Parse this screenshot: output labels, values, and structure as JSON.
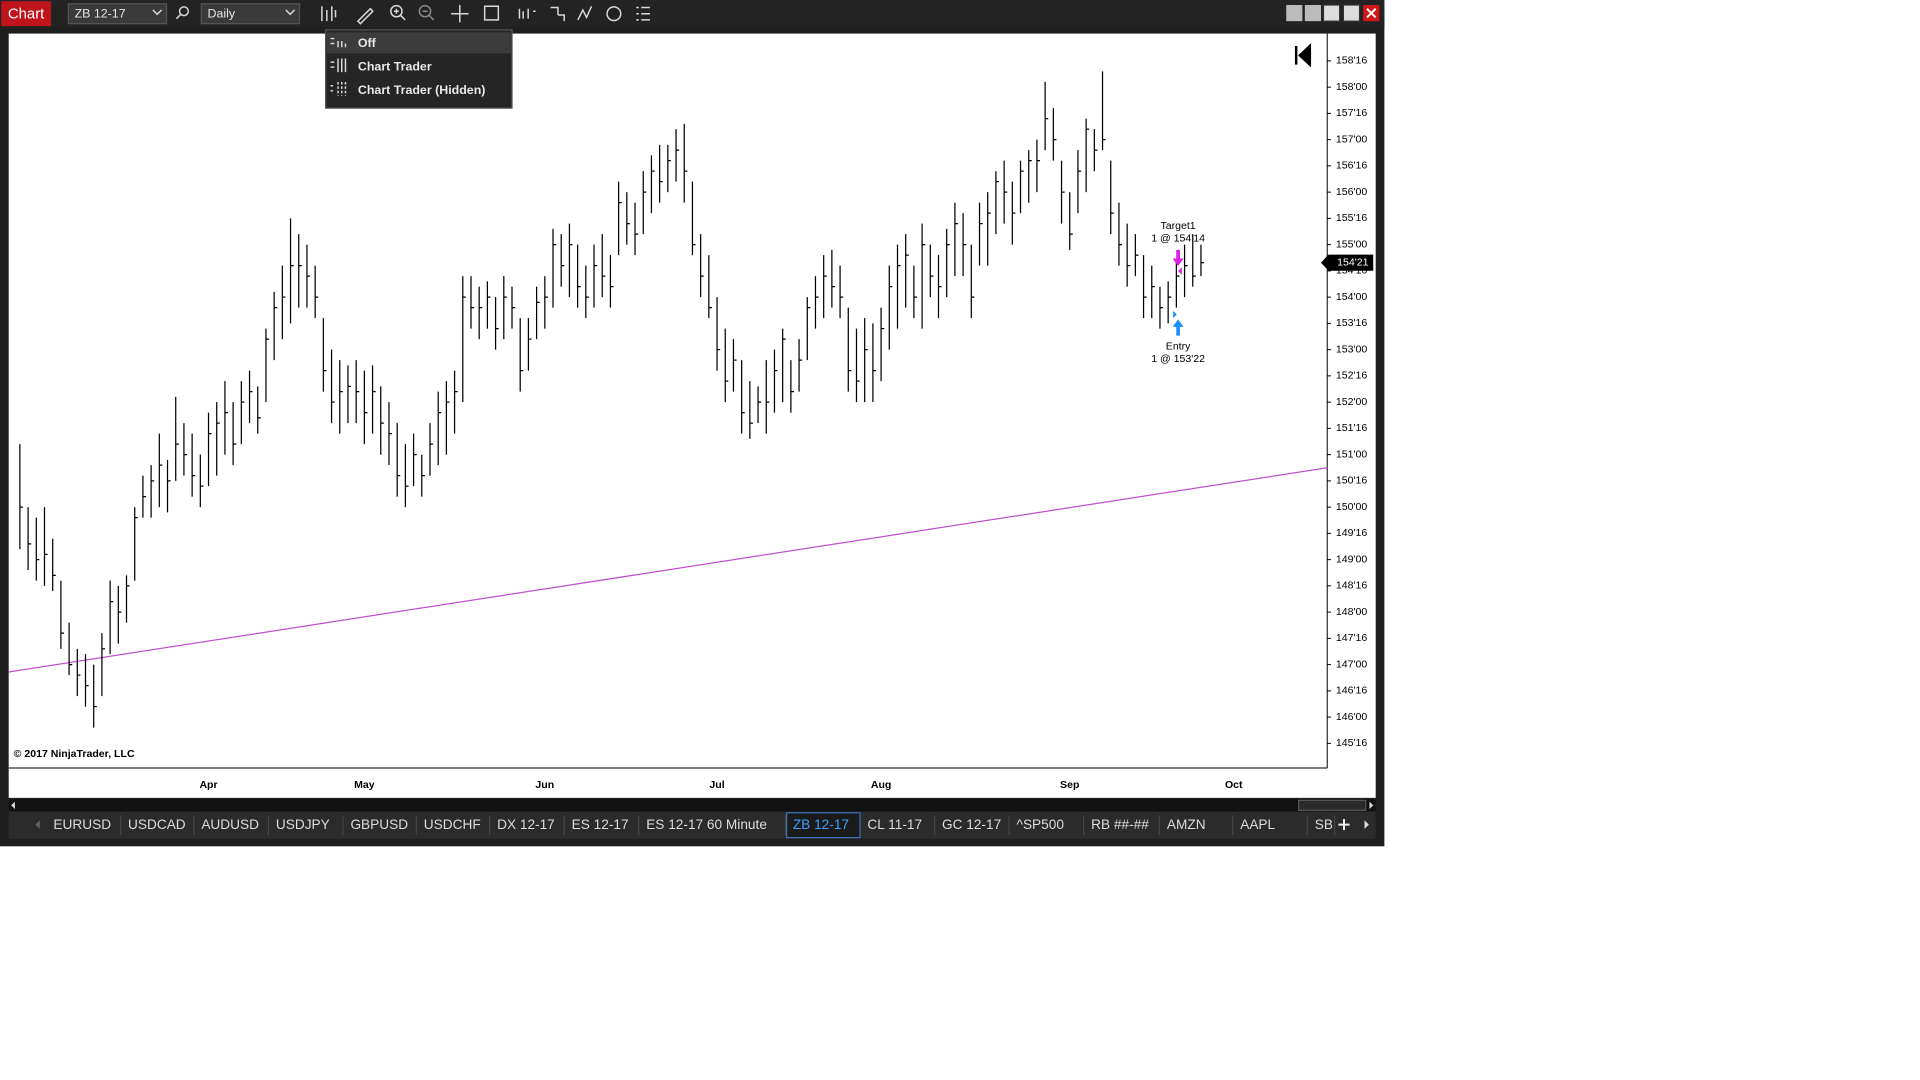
{
  "window": {
    "title": "Chart",
    "instrument": "ZB 12-17",
    "interval": "Daily"
  },
  "menu": {
    "items": [
      "Off",
      "Chart Trader",
      "Chart Trader (Hidden)"
    ]
  },
  "tabs": {
    "items": [
      "EURUSD",
      "USDCAD",
      "AUDUSD",
      "USDJPY",
      "GBPUSD",
      "USDCHF",
      "DX 12-17",
      "ES 12-17",
      "ES 12-17 60 Minute",
      "ZB 12-17",
      "CL 11-17",
      "GC 12-17",
      "^SP500",
      "RB ##-##",
      "AMZN",
      "AAPL",
      "SB"
    ],
    "active": 9
  },
  "chart_data": {
    "type": "ohlc",
    "color": "#000000",
    "categories": [
      null,
      null,
      null,
      null,
      null,
      null,
      null,
      null,
      null,
      null,
      null,
      null,
      null,
      null,
      null,
      null,
      null,
      null,
      null,
      null,
      null,
      null,
      null,
      "Apr",
      null,
      null,
      null,
      null,
      null,
      null,
      null,
      null,
      null,
      null,
      null,
      null,
      null,
      null,
      null,
      null,
      null,
      null,
      "May",
      null,
      null,
      null,
      null,
      null,
      null,
      null,
      null,
      null,
      null,
      null,
      null,
      null,
      null,
      null,
      null,
      null,
      null,
      null,
      null,
      null,
      "Jun",
      null,
      null,
      null,
      null,
      null,
      null,
      null,
      null,
      null,
      null,
      null,
      null,
      null,
      null,
      null,
      null,
      null,
      null,
      null,
      null,
      "Jul",
      null,
      null,
      null,
      null,
      null,
      null,
      null,
      null,
      null,
      null,
      null,
      null,
      null,
      null,
      null,
      null,
      null,
      null,
      null,
      "Aug",
      null,
      null,
      null,
      null,
      null,
      null,
      null,
      null,
      null,
      null,
      null,
      null,
      null,
      null,
      null,
      null,
      null,
      null,
      null,
      null,
      null,
      null,
      "Sep",
      null,
      null,
      null,
      null,
      null,
      null,
      null,
      null,
      null,
      null,
      null,
      null,
      null,
      null,
      null,
      null,
      null,
      null,
      null,
      "Oct"
    ],
    "high": [
      151.2,
      150.0,
      149.8,
      150.0,
      149.4,
      148.6,
      147.8,
      147.3,
      147.2,
      147.0,
      147.6,
      148.6,
      148.5,
      148.7,
      150.0,
      150.6,
      150.8,
      151.4,
      150.9,
      152.1,
      151.6,
      151.4,
      151.0,
      151.8,
      152.0,
      152.4,
      152.0,
      152.4,
      152.6,
      152.3,
      153.4,
      154.1,
      154.6,
      155.5,
      155.2,
      155.0,
      154.6,
      153.6,
      153.0,
      152.8,
      152.7,
      152.8,
      152.6,
      152.7,
      152.3,
      152.0,
      151.6,
      151.2,
      151.4,
      151.0,
      151.6,
      152.2,
      152.4,
      152.6,
      154.4,
      154.4,
      154.2,
      154.3,
      154.0,
      154.4,
      154.2,
      153.6,
      153.6,
      154.2,
      154.4,
      155.3,
      155.2,
      155.4,
      155.0,
      154.6,
      155.0,
      155.2,
      154.8,
      156.2,
      156.0,
      155.8,
      156.4,
      156.7,
      156.9,
      156.9,
      157.2,
      157.3,
      156.2,
      155.2,
      154.8,
      154.0,
      153.4,
      153.2,
      152.8,
      152.4,
      152.3,
      152.8,
      153.0,
      153.4,
      152.8,
      153.2,
      154.0,
      154.4,
      154.8,
      154.9,
      154.6,
      153.8,
      153.4,
      153.6,
      153.5,
      153.8,
      154.6,
      155.0,
      155.2,
      154.6,
      155.4,
      155.0,
      154.8,
      155.3,
      155.8,
      155.6,
      155.0,
      155.8,
      156.0,
      156.4,
      156.6,
      156.2,
      156.6,
      156.8,
      157.0,
      158.1,
      157.6,
      156.6,
      156.0,
      156.8,
      157.4,
      157.2,
      158.3,
      156.6,
      155.8,
      155.4,
      155.2,
      154.8,
      154.6,
      154.2,
      154.3,
      154.7,
      155.0,
      155.2,
      155.0,
      null,
      null,
      null,
      null
    ],
    "low": [
      149.2,
      148.8,
      148.6,
      148.5,
      148.4,
      147.3,
      146.8,
      146.4,
      146.2,
      145.8,
      146.4,
      147.2,
      147.4,
      147.8,
      148.6,
      149.8,
      149.8,
      150.0,
      149.9,
      150.5,
      150.6,
      150.2,
      150.0,
      150.4,
      150.6,
      151.0,
      150.8,
      151.2,
      151.6,
      151.4,
      152.0,
      152.8,
      153.2,
      153.5,
      153.8,
      153.8,
      153.6,
      152.2,
      151.6,
      151.4,
      151.6,
      151.6,
      151.2,
      151.4,
      151.0,
      150.8,
      150.2,
      150.0,
      150.4,
      150.2,
      150.6,
      150.8,
      151.0,
      151.4,
      152.0,
      153.4,
      153.2,
      153.4,
      153.0,
      153.2,
      153.4,
      152.2,
      152.6,
      153.2,
      153.4,
      153.8,
      154.2,
      154.0,
      153.8,
      153.6,
      153.8,
      154.0,
      153.8,
      154.8,
      155.0,
      154.8,
      155.2,
      155.6,
      155.8,
      156.0,
      156.2,
      155.8,
      154.8,
      154.0,
      153.6,
      152.6,
      152.0,
      152.2,
      151.4,
      151.3,
      151.6,
      151.4,
      151.8,
      152.0,
      151.8,
      152.2,
      152.8,
      153.4,
      153.6,
      153.8,
      153.6,
      152.2,
      152.0,
      152.0,
      152.0,
      152.4,
      153.0,
      153.4,
      153.8,
      153.6,
      153.4,
      154.0,
      153.6,
      154.0,
      154.4,
      154.4,
      153.6,
      154.6,
      154.6,
      155.2,
      155.4,
      155.0,
      155.6,
      155.8,
      156.0,
      156.8,
      156.6,
      155.4,
      154.9,
      155.6,
      156.0,
      156.4,
      156.8,
      155.2,
      154.6,
      154.2,
      154.4,
      153.6,
      153.6,
      153.4,
      153.5,
      153.8,
      154.0,
      154.2,
      154.4,
      null,
      null,
      null,
      null
    ],
    "close": [
      150.0,
      149.3,
      149.0,
      149.1,
      148.7,
      147.6,
      147.0,
      146.8,
      146.6,
      146.2,
      147.3,
      148.2,
      148.0,
      148.5,
      149.8,
      150.2,
      150.5,
      150.8,
      150.5,
      151.2,
      151.0,
      150.6,
      150.4,
      151.4,
      151.6,
      151.8,
      151.2,
      152.0,
      152.2,
      151.7,
      153.2,
      153.8,
      154.0,
      154.6,
      154.6,
      154.4,
      154.0,
      152.6,
      152.0,
      152.2,
      152.3,
      152.2,
      151.8,
      152.2,
      151.6,
      151.4,
      150.6,
      150.4,
      151.0,
      150.6,
      151.2,
      151.8,
      152.0,
      152.2,
      154.0,
      153.8,
      153.8,
      154.0,
      153.4,
      154.0,
      153.8,
      152.6,
      153.2,
      153.9,
      154.0,
      155.0,
      154.6,
      155.0,
      154.2,
      154.0,
      154.6,
      154.4,
      154.2,
      155.8,
      155.4,
      155.2,
      156.0,
      156.4,
      156.2,
      156.6,
      156.8,
      156.4,
      155.0,
      154.4,
      153.8,
      153.0,
      152.4,
      152.8,
      151.8,
      151.6,
      152.0,
      152.0,
      152.6,
      153.2,
      152.2,
      152.8,
      153.8,
      154.0,
      154.4,
      154.2,
      154.0,
      152.6,
      152.4,
      153.0,
      152.6,
      153.4,
      154.2,
      154.6,
      154.8,
      154.0,
      155.0,
      154.4,
      154.2,
      155.0,
      155.4,
      155.0,
      154.0,
      155.4,
      155.6,
      156.2,
      156.0,
      155.6,
      156.4,
      156.6,
      156.6,
      157.4,
      157.0,
      156.0,
      155.2,
      156.4,
      157.2,
      156.8,
      157.0,
      155.6,
      155.0,
      154.6,
      154.8,
      154.0,
      154.2,
      153.8,
      154.0,
      154.4,
      154.6,
      154.4,
      154.656,
      null,
      null,
      null,
      null
    ],
    "ylim": [
      145.03,
      159.02
    ],
    "yticks": [
      {
        "value": 158.5,
        "label": "158'16"
      },
      {
        "value": 158,
        "label": "158'00"
      },
      {
        "value": 157.5,
        "label": "157'16"
      },
      {
        "value": 157,
        "label": "157'00"
      },
      {
        "value": 156.5,
        "label": "156'16"
      },
      {
        "value": 156,
        "label": "156'00"
      },
      {
        "value": 155.5,
        "label": "155'16"
      },
      {
        "value": 155,
        "label": "155'00"
      },
      {
        "value": 154.5,
        "label": "154'16"
      },
      {
        "value": 154,
        "label": "154'00"
      },
      {
        "value": 153.5,
        "label": "153'16"
      },
      {
        "value": 153,
        "label": "153'00"
      },
      {
        "value": 152.5,
        "label": "152'16"
      },
      {
        "value": 152,
        "label": "152'00"
      },
      {
        "value": 151.5,
        "label": "151'16"
      },
      {
        "value": 151,
        "label": "151'00"
      },
      {
        "value": 150.5,
        "label": "150'16"
      },
      {
        "value": 150,
        "label": "150'00"
      },
      {
        "value": 149.5,
        "label": "149'16"
      },
      {
        "value": 149,
        "label": "149'00"
      },
      {
        "value": 148.5,
        "label": "148'16"
      },
      {
        "value": 148,
        "label": "148'00"
      },
      {
        "value": 147.5,
        "label": "147'16"
      },
      {
        "value": 147,
        "label": "147'00"
      },
      {
        "value": 146.5,
        "label": "146'16"
      },
      {
        "value": 146,
        "label": "146'00"
      },
      {
        "value": 145.5,
        "label": "145'16"
      }
    ],
    "last_price": {
      "value": 154.656,
      "label": "154'21"
    },
    "trendline": {
      "color": "#c050d0",
      "start": 146.86,
      "end": 150.75
    },
    "annotations": {
      "target": {
        "name": "Target1",
        "text": "1 @ 154'14",
        "color": "#e020e0"
      },
      "entry": {
        "name": "Entry",
        "text": "1 @ 153'22",
        "color": "#1e90ff"
      }
    },
    "copyright": "© 2017 NinjaTrader, LLC"
  }
}
